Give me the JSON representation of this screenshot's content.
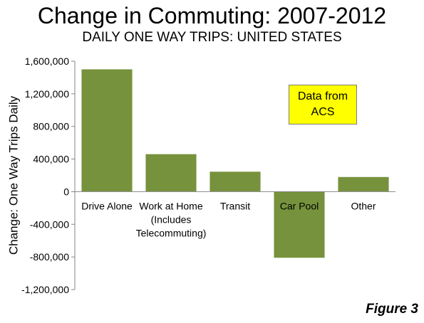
{
  "title": "Change in Commuting: 2007-2012",
  "subtitle": "DAILY ONE WAY TRIPS: UNITED STATES",
  "note": "Data from\nACS",
  "figure_label": "Figure 3",
  "chart_data": {
    "type": "bar",
    "categories": [
      "Drive Alone",
      "Work at Home\n(Includes\nTelecommuting)",
      "Transit",
      "Car Pool",
      "Other"
    ],
    "values": [
      1500000,
      460000,
      245000,
      -810000,
      180000
    ],
    "ylabel": "Change: One Way Trips Daily",
    "ylim": [
      -1200000,
      1600000
    ],
    "yticks": [
      1600000,
      1200000,
      800000,
      400000,
      0,
      -400000,
      -800000,
      -1200000
    ],
    "ytick_labels": [
      "1,600,000",
      "1,200,000",
      "800,000",
      "400,000",
      "0",
      "-400,000",
      "-800,000",
      "-1,200,000"
    ],
    "bar_color": "#76923c",
    "grid": false,
    "legend": "none"
  }
}
